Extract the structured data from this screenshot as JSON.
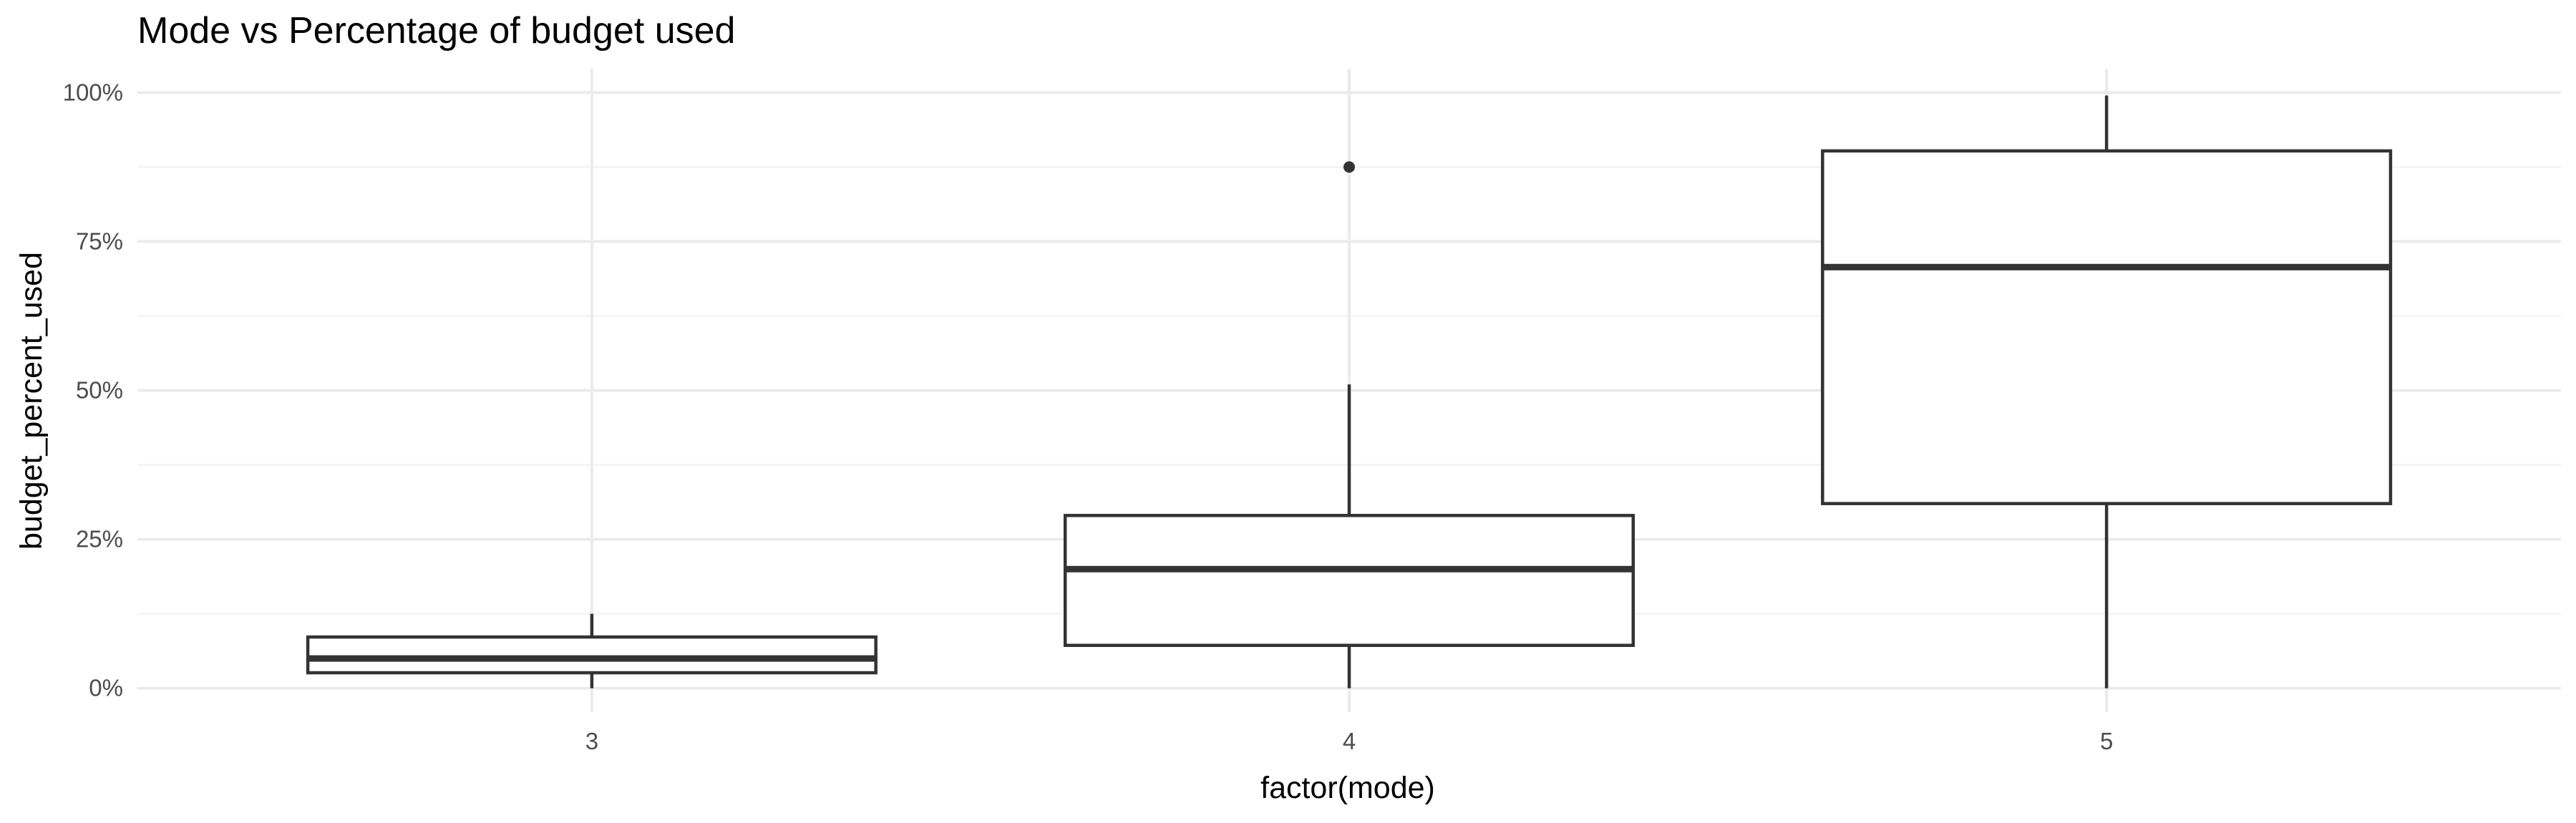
{
  "chart_data": {
    "type": "boxplot",
    "title": "Mode vs Percentage of budget used",
    "xlabel": "factor(mode)",
    "ylabel": "budget_percent_used",
    "categories": [
      "3",
      "4",
      "5"
    ],
    "ylim": [
      -0.04,
      1.04
    ],
    "y_ticks": [
      {
        "value": 0,
        "label": "0%"
      },
      {
        "value": 0.25,
        "label": "25%"
      },
      {
        "value": 0.5,
        "label": "50%"
      },
      {
        "value": 0.75,
        "label": "75%"
      },
      {
        "value": 1,
        "label": "100%"
      }
    ],
    "y_minor_ticks": [
      0.125,
      0.375,
      0.625,
      0.875
    ],
    "grid": true,
    "boxes": [
      {
        "category": "3",
        "whisker_low": 0.0,
        "q1": 0.026,
        "median": 0.05,
        "q3": 0.086,
        "whisker_high": 0.125,
        "outliers": []
      },
      {
        "category": "4",
        "whisker_low": 0.0,
        "q1": 0.072,
        "median": 0.2,
        "q3": 0.29,
        "whisker_high": 0.51,
        "outliers": [
          0.875
        ]
      },
      {
        "category": "5",
        "whisker_low": 0.0,
        "q1": 0.31,
        "median": 0.707,
        "q3": 0.902,
        "whisker_high": 0.995,
        "outliers": []
      }
    ],
    "colors": {
      "box_line": "#333333",
      "box_fill": "#ffffff",
      "grid": "#ebebeb"
    }
  }
}
